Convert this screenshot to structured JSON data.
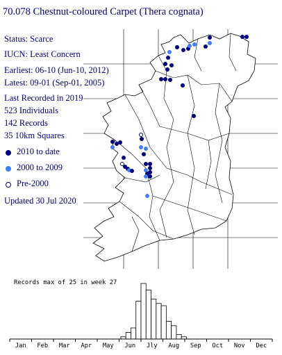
{
  "header": {
    "title": "70.078 Chestnut-coloured Carpet (Thera cognata)"
  },
  "info": {
    "status": "Status: Scarce",
    "iucn": "IUCN: Least Concern",
    "earliest": "Earliest: 06-10 (Jun-10, 2012)",
    "latest": "Latest: 09-01 (Sep-01, 2005)",
    "last_recorded": "Last Recorded in 2019",
    "individuals": "523 Individuals",
    "records": "142 Records",
    "squares": "35 10km Squares",
    "updated": "Updated 30 Jul 2020"
  },
  "legend": {
    "items": [
      {
        "label": "2010 to date",
        "color": "#000080",
        "style": "filled"
      },
      {
        "label": "2000 to 2009",
        "color": "#3f7fff",
        "style": "filled"
      },
      {
        "label": "Pre-2000",
        "color": "#000080",
        "style": "hollow"
      }
    ]
  },
  "map": {
    "icon": "ireland-distribution-map"
  },
  "chart_data": {
    "type": "bar",
    "title": "Records max of 25 in week 27",
    "categories": [
      "Jan",
      "Feb",
      "Mar",
      "Apr",
      "May",
      "Jun",
      "Jly",
      "Aug",
      "Sep",
      "Oct",
      "Nov",
      "Dec"
    ],
    "week_values": [
      {
        "week": 23,
        "value": 1
      },
      {
        "week": 24,
        "value": 3
      },
      {
        "week": 25,
        "value": 5
      },
      {
        "week": 26,
        "value": 17
      },
      {
        "week": 27,
        "value": 25
      },
      {
        "week": 28,
        "value": 22
      },
      {
        "week": 29,
        "value": 18
      },
      {
        "week": 30,
        "value": 16
      },
      {
        "week": 31,
        "value": 15
      },
      {
        "week": 32,
        "value": 8
      },
      {
        "week": 33,
        "value": 6
      },
      {
        "week": 34,
        "value": 2
      },
      {
        "week": 35,
        "value": 1
      }
    ],
    "ylim": [
      0,
      25
    ]
  }
}
